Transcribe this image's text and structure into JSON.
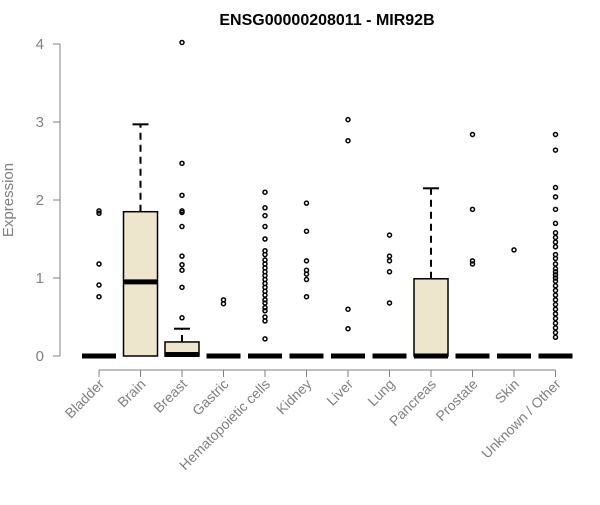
{
  "chart_data": {
    "type": "boxplot",
    "title": "ENSG00000208011 - MIR92B",
    "ylabel": "Expression",
    "xlabel": "",
    "ylim": [
      0,
      4
    ],
    "yticks": [
      0,
      1,
      2,
      3,
      4
    ],
    "grid": false,
    "categories": [
      "Bladder",
      "Brain",
      "Breast",
      "Gastric",
      "Hematopoietic cells",
      "Kidney",
      "Liver",
      "Lung",
      "Pancreas",
      "Prostate",
      "Skin",
      "Unknown / Other"
    ],
    "boxes": [
      {
        "category": "Bladder",
        "q1": 0,
        "median": 0,
        "q3": 0,
        "whisker_low": 0,
        "whisker_high": 0,
        "outliers": [
          0.76,
          0.91,
          1.18,
          1.83,
          1.86
        ]
      },
      {
        "category": "Brain",
        "q1": 0,
        "median": 0.95,
        "q3": 1.85,
        "whisker_low": 0,
        "whisker_high": 2.97,
        "outliers": []
      },
      {
        "category": "Breast",
        "q1": 0,
        "median": 0.02,
        "q3": 0.18,
        "whisker_low": 0,
        "whisker_high": 0.35,
        "outliers": [
          0.49,
          0.88,
          1.1,
          1.17,
          1.28,
          1.66,
          1.84,
          1.86,
          2.06,
          2.47,
          4.02
        ]
      },
      {
        "category": "Gastric",
        "q1": 0,
        "median": 0,
        "q3": 0,
        "whisker_low": 0,
        "whisker_high": 0,
        "outliers": [
          0.67,
          0.72
        ]
      },
      {
        "category": "Hematopoietic cells",
        "q1": 0,
        "median": 0,
        "q3": 0,
        "whisker_low": 0,
        "whisker_high": 0,
        "outliers": [
          0.22,
          0.45,
          0.5,
          0.58,
          0.62,
          0.68,
          0.72,
          0.78,
          0.83,
          0.88,
          0.93,
          0.98,
          1.03,
          1.08,
          1.13,
          1.18,
          1.23,
          1.3,
          1.35,
          1.5,
          1.66,
          1.8,
          1.9,
          2.1
        ]
      },
      {
        "category": "Kidney",
        "q1": 0,
        "median": 0,
        "q3": 0,
        "whisker_low": 0,
        "whisker_high": 0,
        "outliers": [
          0.76,
          0.98,
          1.05,
          1.1,
          1.22,
          1.6,
          1.96
        ]
      },
      {
        "category": "Liver",
        "q1": 0,
        "median": 0,
        "q3": 0,
        "whisker_low": 0,
        "whisker_high": 0,
        "outliers": [
          0.35,
          0.6,
          2.76,
          3.03
        ]
      },
      {
        "category": "Lung",
        "q1": 0,
        "median": 0,
        "q3": 0,
        "whisker_low": 0,
        "whisker_high": 0,
        "outliers": [
          0.68,
          1.08,
          1.22,
          1.28,
          1.55
        ]
      },
      {
        "category": "Pancreas",
        "q1": 0,
        "median": 0,
        "q3": 0.99,
        "whisker_low": 0,
        "whisker_high": 2.15,
        "outliers": []
      },
      {
        "category": "Prostate",
        "q1": 0,
        "median": 0,
        "q3": 0,
        "whisker_low": 0,
        "whisker_high": 0,
        "outliers": [
          1.18,
          1.22,
          1.88,
          2.84
        ]
      },
      {
        "category": "Skin",
        "q1": 0,
        "median": 0,
        "q3": 0,
        "whisker_low": 0,
        "whisker_high": 0,
        "outliers": [
          1.36
        ]
      },
      {
        "category": "Unknown / Other",
        "q1": 0,
        "median": 0,
        "q3": 0,
        "whisker_low": 0,
        "whisker_high": 0,
        "outliers": [
          0.24,
          0.3,
          0.36,
          0.42,
          0.48,
          0.54,
          0.6,
          0.66,
          0.72,
          0.78,
          0.84,
          0.9,
          0.96,
          1.0,
          1.04,
          1.08,
          1.12,
          1.18,
          1.25,
          1.3,
          1.4,
          1.46,
          1.52,
          1.58,
          1.7,
          1.88,
          2.04,
          2.16,
          2.64,
          2.84
        ]
      }
    ],
    "colors": {
      "box_fill": "#ede6cc",
      "box_stroke": "#000000",
      "axis": "#808080",
      "text": "#808080",
      "title": "#000000"
    }
  }
}
